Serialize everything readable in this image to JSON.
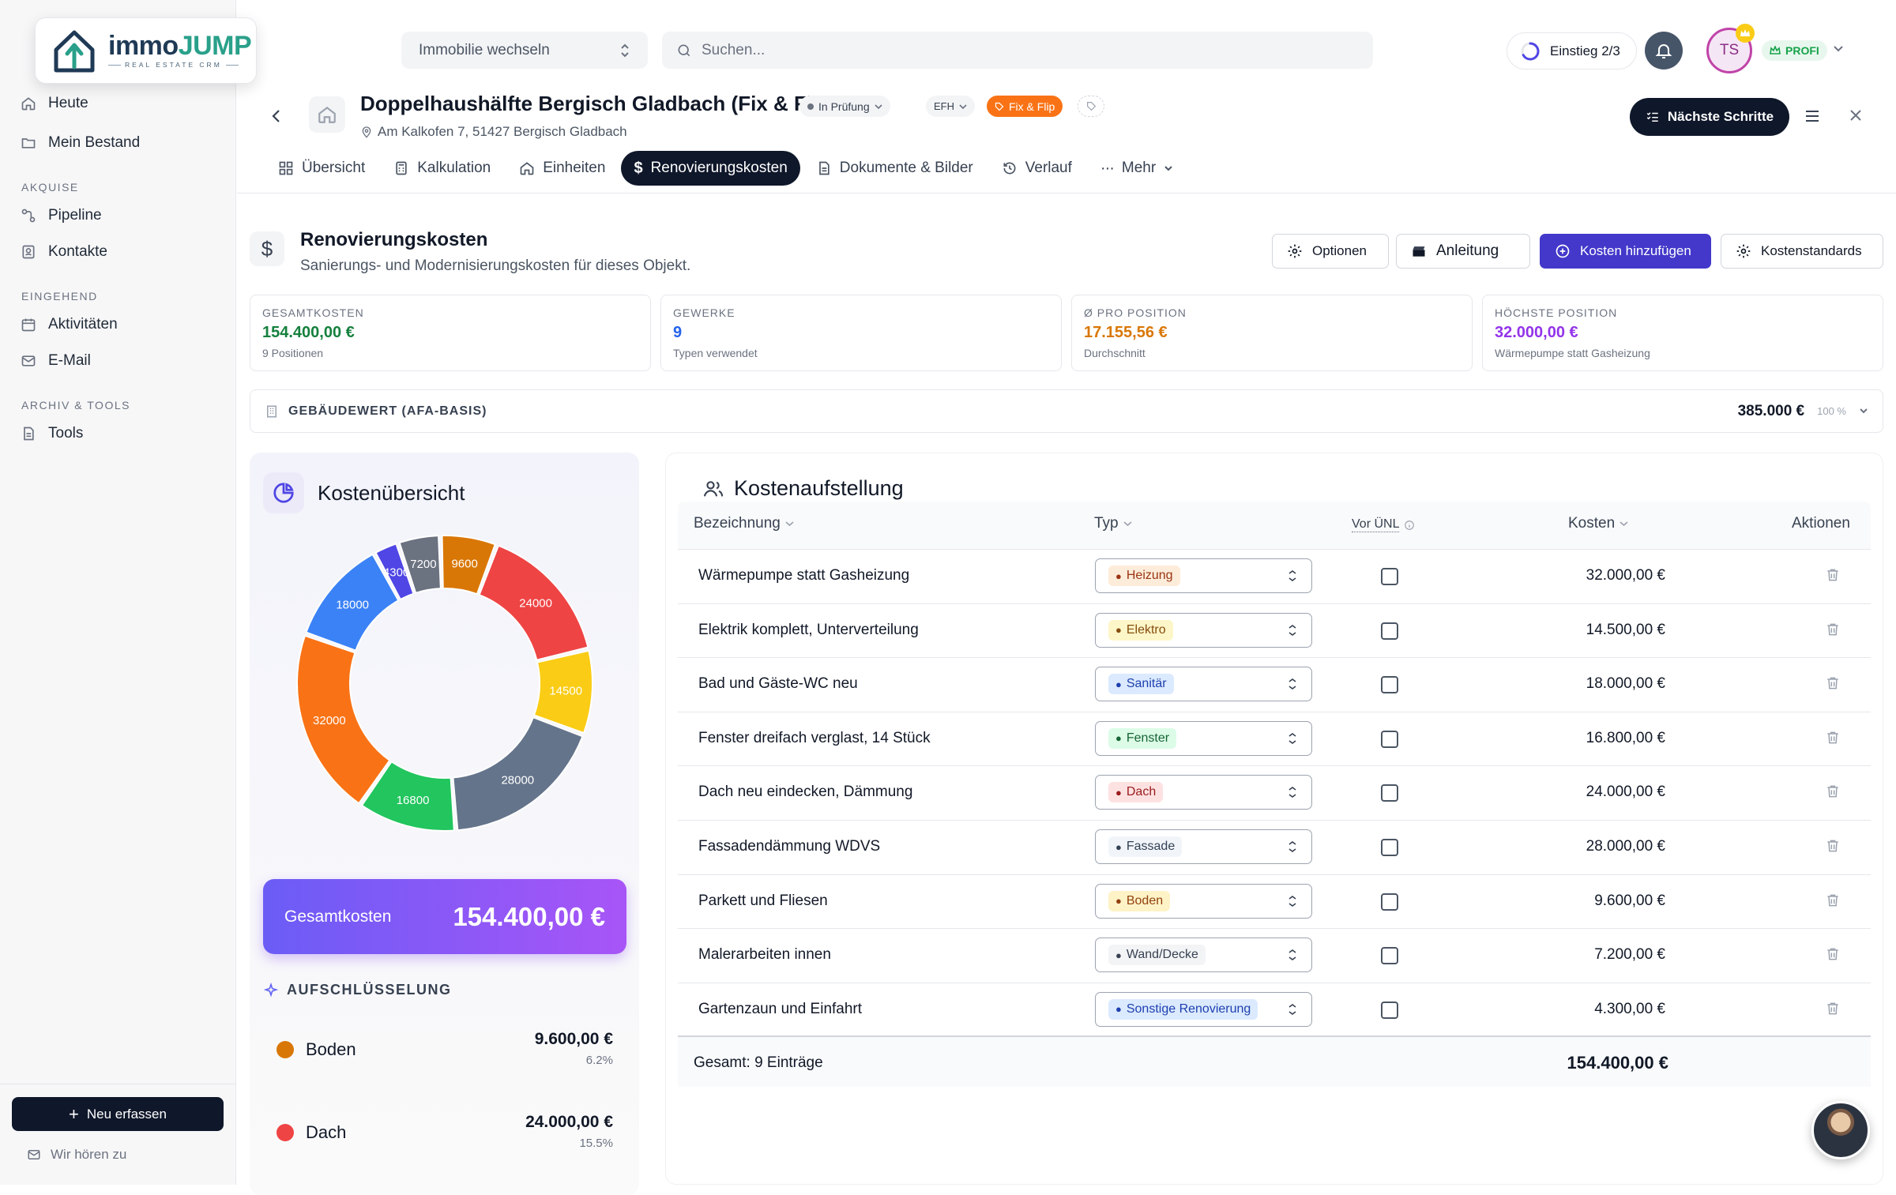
{
  "app": {
    "logo_word_a": "immo",
    "logo_word_b": "JUMP",
    "logo_sub": "REAL ESTATE CRM"
  },
  "sidebar": {
    "heute": "Heute",
    "bestand": "Mein Bestand",
    "sec_akquise": "AKQUISE",
    "pipeline": "Pipeline",
    "kontakte": "Kontakte",
    "sec_eingehend": "EINGEHEND",
    "aktivitaeten": "Aktivitäten",
    "email": "E-Mail",
    "sec_archiv": "ARCHIV & TOOLS",
    "tools": "Tools",
    "neu_label": "Neu erfassen",
    "feedback_label": "Wir hören zu"
  },
  "topbar": {
    "switch_label": "Immobilie wechseln",
    "search_placeholder": "Suchen...",
    "einstieg_label": "Einstieg 2/3",
    "einstieg_progress": 0.667,
    "avatar_initials": "TS",
    "profi_label": "PROFI"
  },
  "property": {
    "title": "Doppelhaushälfte Bergisch Gladbach (Fix & Flip)",
    "address": "Am Kalkofen 7, 51427 Bergisch Gladbach",
    "status": "In Prüfung",
    "type": "EFH",
    "strategy": "Fix & Flip",
    "next_steps_label": "Nächste Schritte"
  },
  "tabs": {
    "uebersicht": "Übersicht",
    "kalkulation": "Kalkulation",
    "einheiten": "Einheiten",
    "renovierung": "Renovierungskosten",
    "dokumente": "Dokumente & Bilder",
    "verlauf": "Verlauf",
    "mehr": "Mehr"
  },
  "section": {
    "title": "Renovierungskosten",
    "subtitle": "Sanierungs- und Modernisierungskosten für dieses Objekt.",
    "optionen": "Optionen",
    "anleitung": "Anleitung",
    "hinzufuegen": "Kosten hinzufügen",
    "standards": "Kostenstandards"
  },
  "stats": {
    "gesamt_label": "GESAMTKOSTEN",
    "gesamt_value": "154.400,00 €",
    "gesamt_sub": "9 Positionen",
    "gewerke_label": "GEWERKE",
    "gewerke_value": "9",
    "gewerke_sub": "Typen verwendet",
    "avg_label": "Ø PRO POSITION",
    "avg_value": "17.155,56 €",
    "avg_sub": "Durchschnitt",
    "max_label": "HÖCHSTE POSITION",
    "max_value": "32.000,00 €",
    "max_sub": "Wärmepumpe statt Gasheizung"
  },
  "gebaeudewert": {
    "label": "GEBÄUDEWERT (AFA-BASIS)",
    "value": "385.000 €",
    "percent": "100 %"
  },
  "overview": {
    "title": "Kostenübersicht",
    "total_label": "Gesamtkosten",
    "total_value": "154.400,00 €",
    "breakdown_title": "AUFSCHLÜSSELUNG",
    "breakdown": [
      {
        "name": "Boden",
        "value": "9.600,00 €",
        "pct": "6.2%",
        "color": "#d97706"
      },
      {
        "name": "Dach",
        "value": "24.000,00 €",
        "pct": "15.5%",
        "color": "#ef4444"
      }
    ]
  },
  "chart_data": {
    "type": "pie",
    "donut": true,
    "slices": [
      {
        "label": "24000",
        "value": 24000,
        "color": "#ef4444"
      },
      {
        "label": "14500",
        "value": 14500,
        "color": "#facc15"
      },
      {
        "label": "28000",
        "value": 28000,
        "color": "#64748b"
      },
      {
        "label": "16800",
        "value": 16800,
        "color": "#22c55e"
      },
      {
        "label": "32000",
        "value": 32000,
        "color": "#f97316"
      },
      {
        "label": "18000",
        "value": 18000,
        "color": "#3b82f6"
      },
      {
        "label": "4300",
        "value": 4300,
        "color": "#4f46e5"
      },
      {
        "label": "7200",
        "value": 7200,
        "color": "#6b7280"
      },
      {
        "label": "9600",
        "value": 9600,
        "color": "#d97706"
      }
    ]
  },
  "table": {
    "title": "Kostenaufstellung",
    "col_name": "Bezeichnung",
    "col_type": "Typ",
    "col_unl": "Vor ÜNL",
    "col_cost": "Kosten",
    "col_actions": "Aktionen",
    "rows": [
      {
        "name": "Wärmepumpe statt Gasheizung",
        "type": "Heizung",
        "cost": "32.000,00 €",
        "bg": "#fdecd9",
        "fg": "#9a3412",
        "icon": "flame-icon"
      },
      {
        "name": "Elektrik komplett, Unterverteilung",
        "type": "Elektro",
        "cost": "14.500,00 €",
        "bg": "#fdf6c8",
        "fg": "#854d0e",
        "icon": "bolt-icon"
      },
      {
        "name": "Bad und Gäste-WC neu",
        "type": "Sanitär",
        "cost": "18.000,00 €",
        "bg": "#dbeafe",
        "fg": "#1e40af",
        "icon": "shower-icon"
      },
      {
        "name": "Fenster dreifach verglast, 14 Stück",
        "type": "Fenster",
        "cost": "16.800,00 €",
        "bg": "#dcfce7",
        "fg": "#166534",
        "icon": "window-icon"
      },
      {
        "name": "Dach neu eindecken, Dämmung",
        "type": "Dach",
        "cost": "24.000,00 €",
        "bg": "#fee2e2",
        "fg": "#991b1b",
        "icon": "roof-icon"
      },
      {
        "name": "Fassadendämmung WDVS",
        "type": "Fassade",
        "cost": "28.000,00 €",
        "bg": "#f1f5f9",
        "fg": "#334155",
        "icon": "building-icon"
      },
      {
        "name": "Parkett und Fliesen",
        "type": "Boden",
        "cost": "9.600,00 €",
        "bg": "#fef3c7",
        "fg": "#92400e",
        "icon": "grid-icon"
      },
      {
        "name": "Malerarbeiten innen",
        "type": "Wand/Decke",
        "cost": "7.200,00 €",
        "bg": "#f3f4f6",
        "fg": "#374151",
        "icon": "paint-roller-icon"
      },
      {
        "name": "Gartenzaun und Einfahrt",
        "type": "Sonstige Renovierung",
        "cost": "4.300,00 €",
        "bg": "#dbeafe",
        "fg": "#1e40af",
        "icon": "wrench-icon"
      }
    ],
    "footer_label": "Gesamt: 9 Einträge",
    "footer_total": "154.400,00 €"
  }
}
